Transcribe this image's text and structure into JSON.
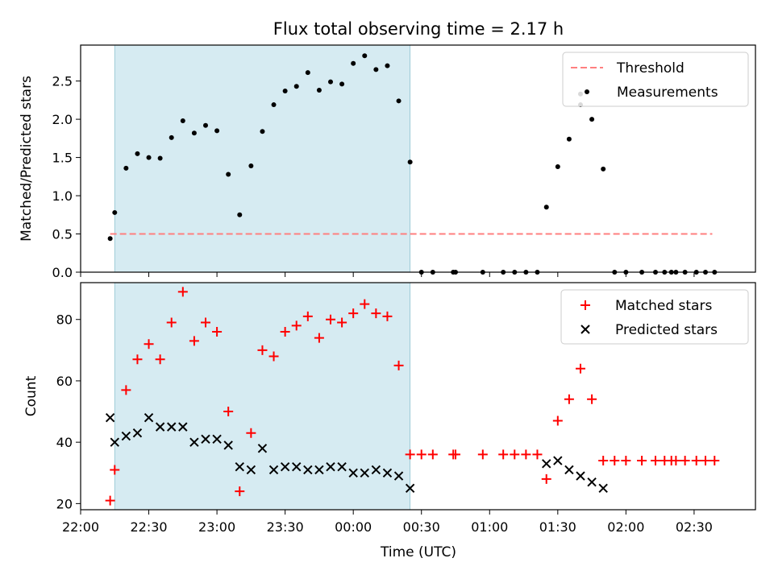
{
  "title": "Flux total observing time = 2.17 h",
  "colors": {
    "measurement": "#000000",
    "threshold": "#ff7f7f",
    "matched": "#ff0000",
    "predicted": "#000000",
    "span": "#add8e6"
  },
  "chart_data": [
    {
      "type": "scatter",
      "panel": "top",
      "ylabel": "Matched/Predicted stars",
      "xlim": [
        "22:00",
        "02:57"
      ],
      "ylim": [
        0,
        2.97
      ],
      "yticks": [
        "0.0",
        "0.5",
        "1.0",
        "1.5",
        "2.0",
        "2.5"
      ],
      "highlight_span": [
        "22:15",
        "00:25"
      ],
      "legend_position": "top-right",
      "threshold": {
        "name": "Threshold",
        "style": "dashed",
        "x": [
          "22:13",
          "02:38"
        ],
        "y": 0.5
      },
      "measurements": {
        "name": "Measurements",
        "points": [
          [
            "22:13",
            0.44
          ],
          [
            "22:15",
            0.78
          ],
          [
            "22:20",
            1.36
          ],
          [
            "22:25",
            1.55
          ],
          [
            "22:30",
            1.5
          ],
          [
            "22:35",
            1.49
          ],
          [
            "22:40",
            1.76
          ],
          [
            "22:45",
            1.98
          ],
          [
            "22:50",
            1.82
          ],
          [
            "22:55",
            1.92
          ],
          [
            "23:00",
            1.85
          ],
          [
            "23:05",
            1.28
          ],
          [
            "23:10",
            0.75
          ],
          [
            "23:15",
            1.39
          ],
          [
            "23:20",
            1.84
          ],
          [
            "23:25",
            2.19
          ],
          [
            "23:30",
            2.37
          ],
          [
            "23:35",
            2.43
          ],
          [
            "23:40",
            2.61
          ],
          [
            "23:45",
            2.38
          ],
          [
            "23:50",
            2.49
          ],
          [
            "23:55",
            2.46
          ],
          [
            "00:00",
            2.73
          ],
          [
            "00:05",
            2.83
          ],
          [
            "00:10",
            2.65
          ],
          [
            "00:15",
            2.7
          ],
          [
            "00:20",
            2.24
          ],
          [
            "00:25",
            1.44
          ],
          [
            "00:30",
            0
          ],
          [
            "00:35",
            0
          ],
          [
            "00:44",
            0
          ],
          [
            "00:45",
            0
          ],
          [
            "00:57",
            0
          ],
          [
            "01:06",
            0
          ],
          [
            "01:11",
            0
          ],
          [
            "01:16",
            0
          ],
          [
            "01:21",
            0
          ],
          [
            "01:25",
            0.85
          ],
          [
            "01:30",
            1.38
          ],
          [
            "01:35",
            1.74
          ],
          [
            "01:40",
            2.33
          ],
          [
            "01:40",
            2.19
          ],
          [
            "01:45",
            2.0
          ],
          [
            "01:50",
            1.35
          ],
          [
            "01:55",
            0
          ],
          [
            "02:00",
            0
          ],
          [
            "02:07",
            0
          ],
          [
            "02:13",
            0
          ],
          [
            "02:17",
            0
          ],
          [
            "02:20",
            0
          ],
          [
            "02:22",
            0
          ],
          [
            "02:26",
            0
          ],
          [
            "02:31",
            0
          ],
          [
            "02:35",
            0
          ],
          [
            "02:39",
            0
          ]
        ]
      }
    },
    {
      "type": "scatter",
      "panel": "bottom",
      "xlabel": "Time (UTC)",
      "ylabel": "Count",
      "xlim": [
        "22:00",
        "02:57"
      ],
      "ylim": [
        18,
        92
      ],
      "xticks": [
        "22:00",
        "22:30",
        "23:00",
        "23:30",
        "00:00",
        "00:30",
        "01:00",
        "01:30",
        "02:00",
        "02:30"
      ],
      "yticks": [
        "20",
        "40",
        "60",
        "80"
      ],
      "highlight_span": [
        "22:15",
        "00:25"
      ],
      "legend_position": "top-right",
      "series": [
        {
          "name": "Matched stars",
          "marker": "+",
          "points": [
            [
              "22:13",
              21
            ],
            [
              "22:15",
              31
            ],
            [
              "22:20",
              57
            ],
            [
              "22:25",
              67
            ],
            [
              "22:30",
              72
            ],
            [
              "22:35",
              67
            ],
            [
              "22:40",
              79
            ],
            [
              "22:45",
              89
            ],
            [
              "22:50",
              73
            ],
            [
              "22:55",
              79
            ],
            [
              "23:00",
              76
            ],
            [
              "23:05",
              50
            ],
            [
              "23:10",
              24
            ],
            [
              "23:15",
              43
            ],
            [
              "23:20",
              70
            ],
            [
              "23:25",
              68
            ],
            [
              "23:30",
              76
            ],
            [
              "23:35",
              78
            ],
            [
              "23:40",
              81
            ],
            [
              "23:45",
              74
            ],
            [
              "23:50",
              80
            ],
            [
              "23:55",
              79
            ],
            [
              "00:00",
              82
            ],
            [
              "00:05",
              85
            ],
            [
              "00:10",
              82
            ],
            [
              "00:15",
              81
            ],
            [
              "00:20",
              65
            ],
            [
              "00:25",
              36
            ],
            [
              "00:30",
              36
            ],
            [
              "00:35",
              36
            ],
            [
              "00:44",
              36
            ],
            [
              "00:45",
              36
            ],
            [
              "00:57",
              36
            ],
            [
              "01:06",
              36
            ],
            [
              "01:11",
              36
            ],
            [
              "01:16",
              36
            ],
            [
              "01:21",
              36
            ],
            [
              "01:25",
              28
            ],
            [
              "01:30",
              47
            ],
            [
              "01:35",
              54
            ],
            [
              "01:40",
              64
            ],
            [
              "01:45",
              54
            ],
            [
              "01:50",
              34
            ],
            [
              "01:55",
              34
            ],
            [
              "02:00",
              34
            ],
            [
              "02:07",
              34
            ],
            [
              "02:13",
              34
            ],
            [
              "02:17",
              34
            ],
            [
              "02:20",
              34
            ],
            [
              "02:22",
              34
            ],
            [
              "02:26",
              34
            ],
            [
              "02:31",
              34
            ],
            [
              "02:35",
              34
            ],
            [
              "02:39",
              34
            ]
          ]
        },
        {
          "name": "Predicted stars",
          "marker": "x",
          "points": [
            [
              "22:13",
              48
            ],
            [
              "22:15",
              40
            ],
            [
              "22:20",
              42
            ],
            [
              "22:25",
              43
            ],
            [
              "22:30",
              48
            ],
            [
              "22:35",
              45
            ],
            [
              "22:40",
              45
            ],
            [
              "22:45",
              45
            ],
            [
              "22:50",
              40
            ],
            [
              "22:55",
              41
            ],
            [
              "23:00",
              41
            ],
            [
              "23:05",
              39
            ],
            [
              "23:10",
              32
            ],
            [
              "23:15",
              31
            ],
            [
              "23:20",
              38
            ],
            [
              "23:25",
              31
            ],
            [
              "23:30",
              32
            ],
            [
              "23:35",
              32
            ],
            [
              "23:40",
              31
            ],
            [
              "23:45",
              31
            ],
            [
              "23:50",
              32
            ],
            [
              "23:55",
              32
            ],
            [
              "00:00",
              30
            ],
            [
              "00:05",
              30
            ],
            [
              "00:10",
              31
            ],
            [
              "00:15",
              30
            ],
            [
              "00:20",
              29
            ],
            [
              "00:25",
              25
            ],
            [
              "01:25",
              33
            ],
            [
              "01:30",
              34
            ],
            [
              "01:35",
              31
            ],
            [
              "01:40",
              29
            ],
            [
              "01:45",
              27
            ],
            [
              "01:50",
              25
            ]
          ]
        }
      ]
    }
  ]
}
